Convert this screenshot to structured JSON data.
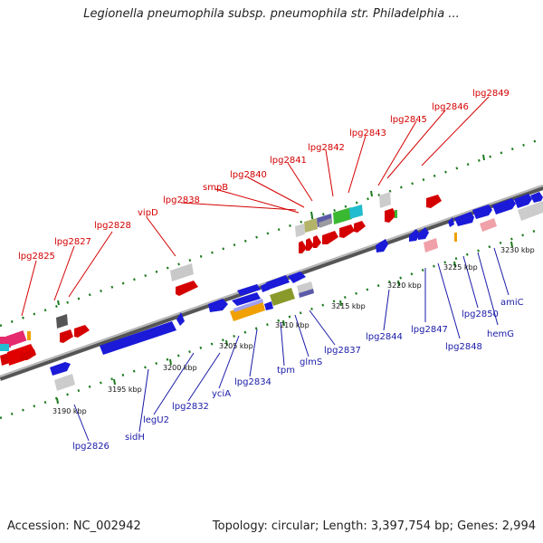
{
  "title": "Legionella pneumophila subsp. pneumophila str. Philadelphia ...",
  "footer": {
    "accession": "Accession: NC_002942",
    "summary": "Topology: circular; Length: 3,397,754 bp; Genes: 2,994"
  },
  "colors": {
    "forward": "#d40000",
    "reverse": "#1a1aa8",
    "backbone": "#7a7a7a",
    "dots": "#1d7a1d"
  },
  "ticks": [
    "3190 kbp",
    "3195 kbp",
    "3200 kbp",
    "3205 kbp",
    "3210 kbp",
    "3215 kbp",
    "3220 kbp",
    "3225 kbp",
    "3230 kbp"
  ],
  "top_labels": [
    "lpg2825",
    "lpg2827",
    "lpg2828",
    "vipD",
    "lpg2838",
    "smpB",
    "lpg2840",
    "lpg2841",
    "lpg2842",
    "lpg2843",
    "lpg2845",
    "lpg2846",
    "lpg2849"
  ],
  "bottom_labels": [
    "lpg2826",
    "sidH",
    "legU2",
    "lpg2832",
    "yciA",
    "lpg2834",
    "tpm",
    "glmS",
    "lpg2837",
    "lpg2844",
    "lpg2847",
    "lpg2848",
    "lpg2850",
    "hemG",
    "amiC"
  ]
}
